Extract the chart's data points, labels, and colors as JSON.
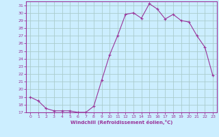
{
  "x_values": [
    0,
    1,
    2,
    3,
    4,
    5,
    6,
    7,
    8,
    9,
    10,
    11,
    12,
    13,
    14,
    15,
    16,
    17,
    18,
    19,
    20,
    21,
    22,
    23
  ],
  "y_values": [
    19,
    18.5,
    17.5,
    17.2,
    17.2,
    17.2,
    17.0,
    17.0,
    17.8,
    21.2,
    24.5,
    27.0,
    29.8,
    30.0,
    29.3,
    31.2,
    30.5,
    29.2,
    29.8,
    29.0,
    28.8,
    27.0,
    25.5,
    21.8
  ],
  "line_color": "#993399",
  "marker_color": "#993399",
  "bg_color": "#cceeff",
  "grid_color": "#aacccc",
  "axis_color": "#993399",
  "tick_color": "#993399",
  "xlabel": "Windchill (Refroidissement éolien,°C)",
  "xlim": [
    -0.5,
    23.5
  ],
  "ylim": [
    17,
    31.5
  ],
  "yticks": [
    17,
    18,
    19,
    20,
    21,
    22,
    23,
    24,
    25,
    26,
    27,
    28,
    29,
    30,
    31
  ],
  "xticks": [
    0,
    1,
    2,
    3,
    4,
    5,
    6,
    7,
    8,
    9,
    10,
    11,
    12,
    13,
    14,
    15,
    16,
    17,
    18,
    19,
    20,
    21,
    22,
    23
  ]
}
